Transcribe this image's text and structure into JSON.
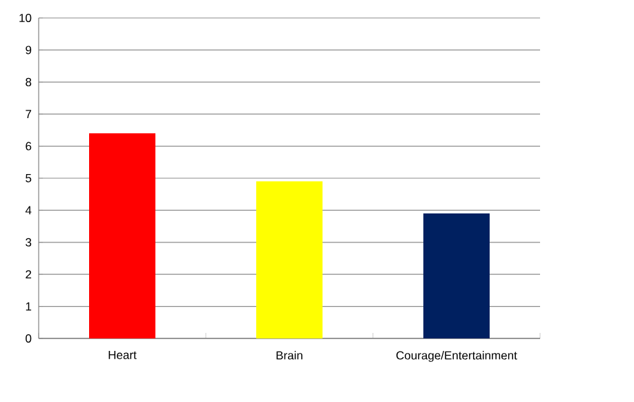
{
  "chart_data": {
    "type": "bar",
    "categories": [
      "Heart",
      "Brain",
      "Courage/Entertainment"
    ],
    "values": [
      6.4,
      4.9,
      3.9
    ],
    "colors": [
      "#ff0000",
      "#ffff00",
      "#002060"
    ],
    "ylim": [
      0,
      10
    ],
    "yticks": [
      0,
      1,
      2,
      3,
      4,
      5,
      6,
      7,
      8,
      9,
      10
    ],
    "grid": "y"
  }
}
